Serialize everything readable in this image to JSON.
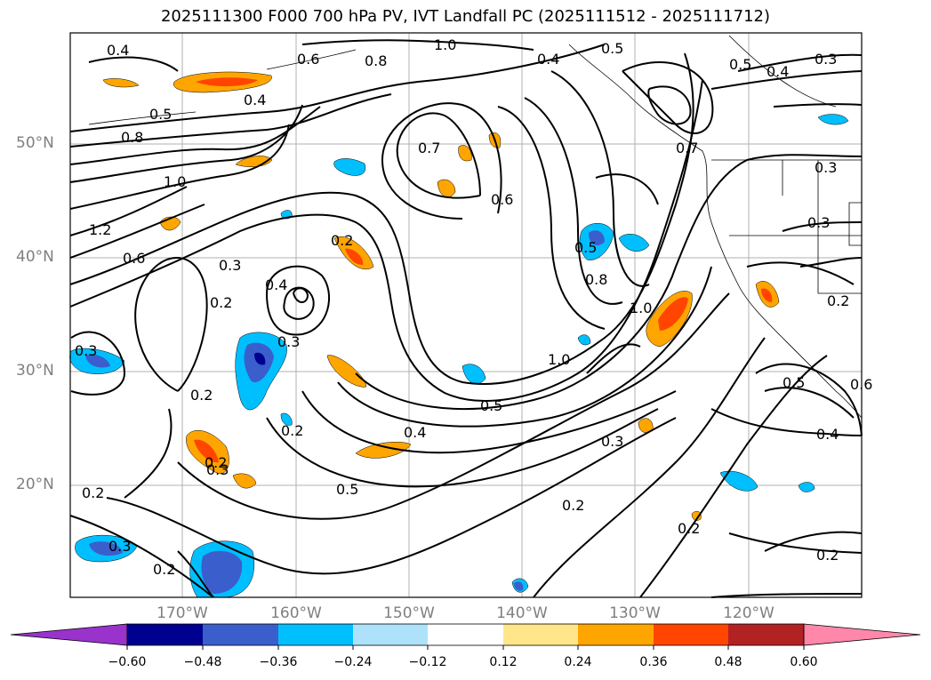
{
  "title": "2025111300 F000 700 hPa PV, IVT Landfall PC (2025111512 - 2025111712)",
  "map": {
    "lat_labels": [
      "50°N",
      "40°N",
      "30°N",
      "20°N"
    ],
    "lon_labels": [
      "170°W",
      "160°W",
      "150°W",
      "140°W",
      "130°W",
      "120°W"
    ],
    "contour_labels": [
      "0.4",
      "0.6",
      "0.7",
      "0.8",
      "1.0",
      "0.5",
      "0.4",
      "0.5",
      "0.4",
      "0.3",
      "0.5",
      "0.8",
      "0.4",
      "0.7",
      "0.6",
      "0.3",
      "1.0",
      "1.2",
      "0.6",
      "0.2",
      "0.3",
      "0.5",
      "0.3",
      "0.2",
      "0.4",
      "0.8",
      "1.0",
      "1.0",
      "0.3",
      "0.2",
      "0.3",
      "0.2",
      "0.5",
      "0.4",
      "0.3",
      "0.2",
      "0.5",
      "0.2",
      "0.2",
      "0.2",
      "0.3",
      "0.2",
      "0.5",
      "0.6",
      "0.4",
      "0.2",
      "0.3",
      "0.2"
    ],
    "frame_color": "#000000",
    "grid_color": "#b0b0b0"
  },
  "colorbar": {
    "tick_labels": [
      "−0.60",
      "−0.48",
      "−0.36",
      "−0.24",
      "−0.12",
      "0.12",
      "0.24",
      "0.36",
      "0.48",
      "0.60"
    ],
    "colors": [
      "#9933cc",
      "#000090",
      "#3a5fcd",
      "#00bfff",
      "#aee2fa",
      "#ffffff",
      "#ffe68a",
      "#ffa500",
      "#ff4500",
      "#b22222",
      "#ff88aa"
    ]
  }
}
